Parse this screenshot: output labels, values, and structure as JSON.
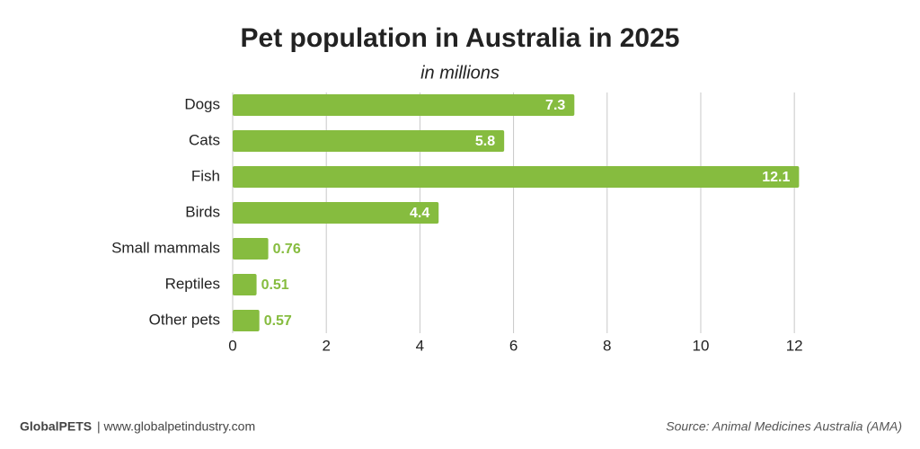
{
  "chart_data": {
    "type": "hbar",
    "title": "Pet population in Australia in 2025",
    "subtitle": "in millions",
    "categories": [
      "Dogs",
      "Cats",
      "Fish",
      "Birds",
      "Small mammals",
      "Reptiles",
      "Other pets"
    ],
    "values": [
      7.3,
      5.8,
      12.1,
      4.4,
      0.76,
      0.51,
      0.57
    ],
    "color": "#86bc3f",
    "xlim": [
      0,
      12.4
    ],
    "xticks": [
      0,
      2,
      4,
      6,
      8,
      10,
      12
    ],
    "grid": true
  },
  "footer": {
    "brand": "GlobalPETS",
    "site": "| www.globalpetindustry.com",
    "source": "Source: Animal Medicines Australia (AMA)"
  }
}
